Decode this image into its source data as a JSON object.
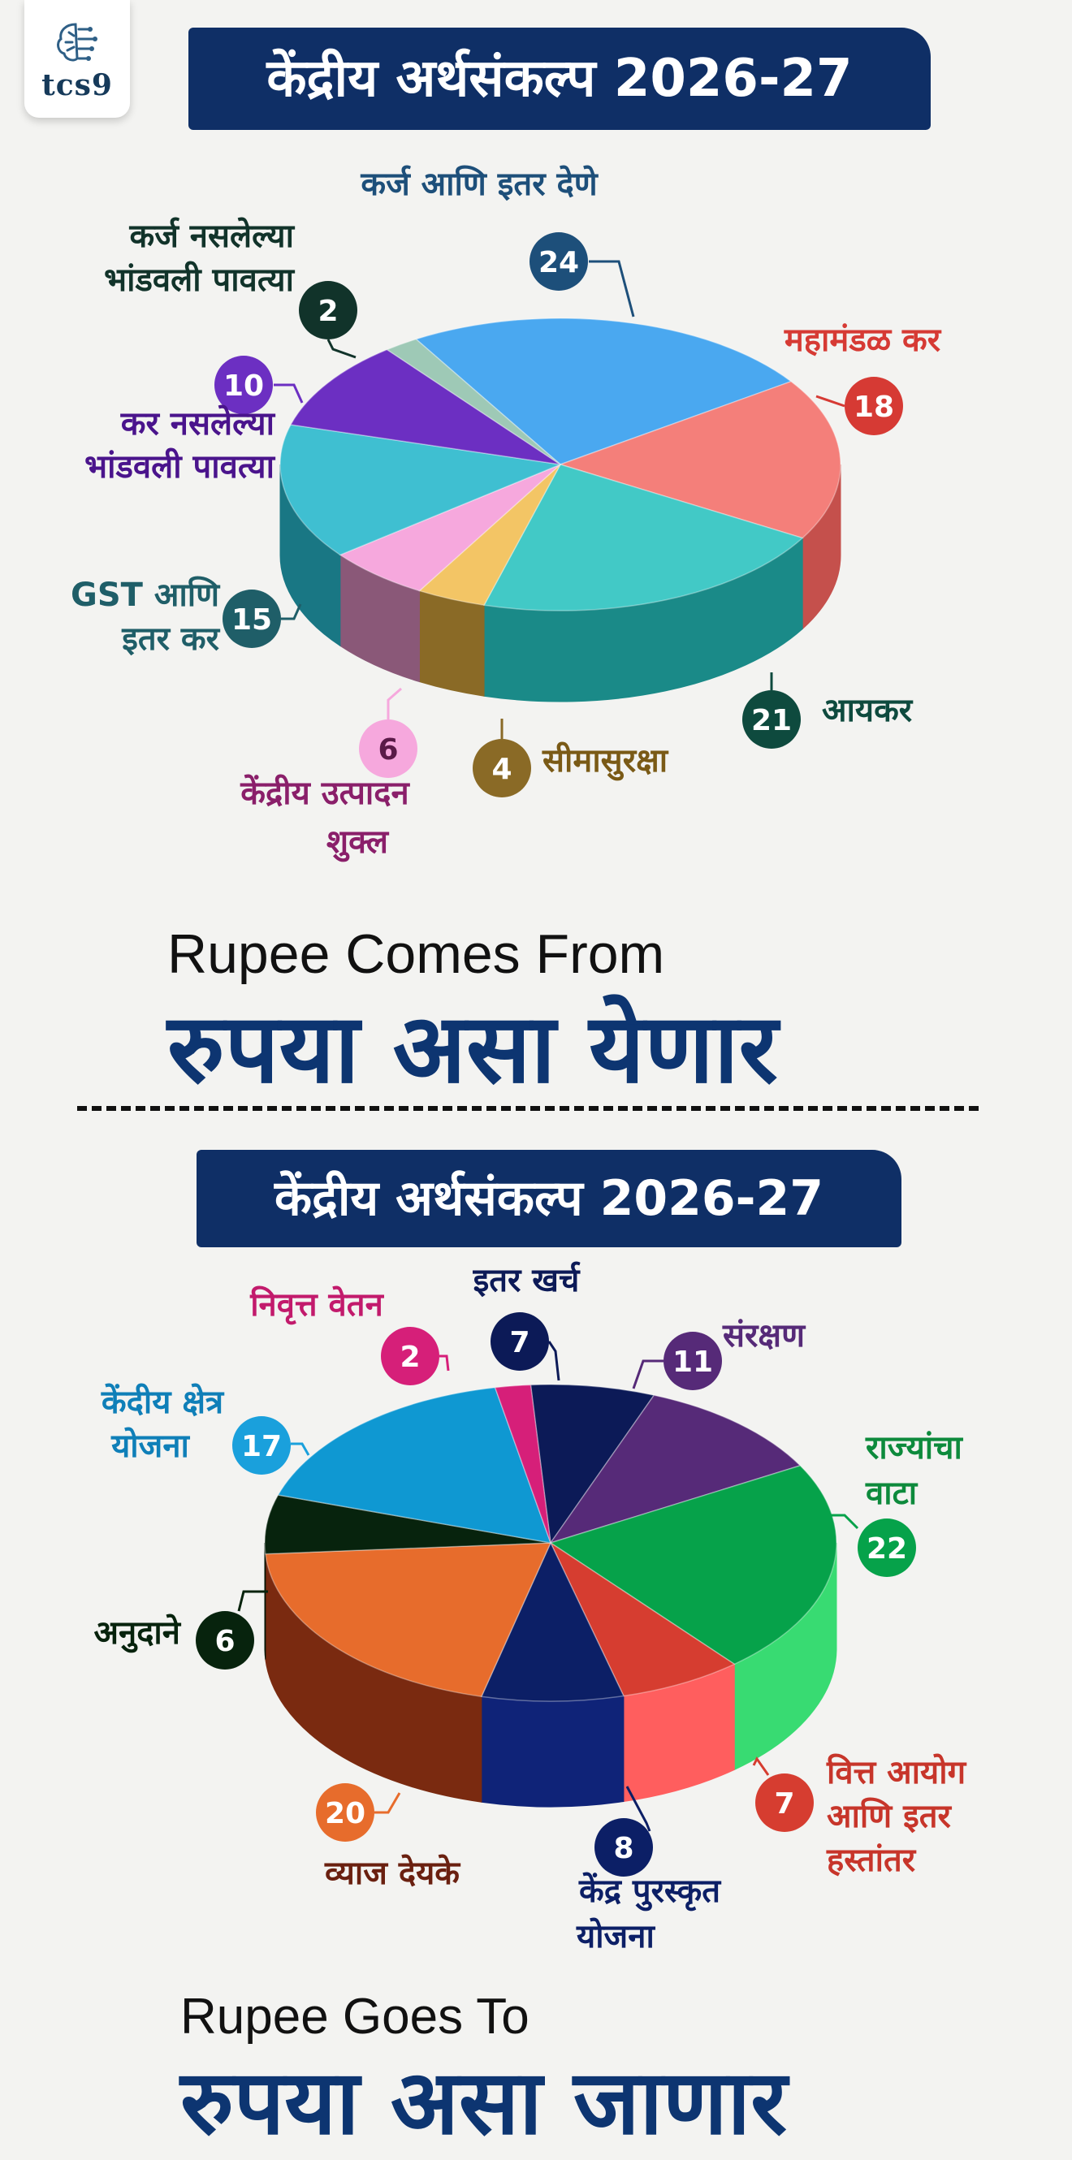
{
  "brand": {
    "logo_text": "tcs9",
    "logo_icon": "brain-circuit-icon"
  },
  "sections": [
    {
      "banner": "केंद्रीय अर्थसंकल्प 2026-27",
      "caption_en": "Rupee Comes From",
      "caption_mr": "रुपया असा येणार"
    },
    {
      "banner": "केंद्रीय अर्थसंकल्प 2026-27",
      "caption_en": "Rupee Goes To",
      "caption_mr": "रुपया असा जाणार"
    }
  ],
  "chart_data": [
    {
      "type": "pie",
      "title": "केंद्रीय अर्थसंकल्प 2026-27",
      "categories": [
        "कर्ज आणि इतर देणे",
        "महामंडळ कर",
        "आयकर",
        "सीमासुरक्षा",
        "केंद्रीय उत्पादन शुक्ल",
        "GST आणि इतर कर",
        "कर नसलेल्या भांडवली पावत्या",
        "कर्ज नसलेल्या भांडवली पावत्या"
      ],
      "values": [
        24,
        18,
        21,
        4,
        6,
        15,
        10,
        2
      ],
      "colors": [
        "#4aa8f0",
        "#f47f7a",
        "#42c9c6",
        "#f3c565",
        "#f6a8dd",
        "#3fbfd1",
        "#6c2fc2",
        "#9ec9b6"
      ],
      "side_colors": [
        "#2a74b0",
        "#c5504c",
        "#1a8a88",
        "#8a6a26",
        "#8a5878",
        "#197784",
        "#3d1775",
        "#5f8a78"
      ],
      "badge_colors": [
        "#1d4f7a",
        "#d63a34",
        "#0e4a3e",
        "#8a6a26",
        "#f6a8dd",
        "#1f5e68",
        "#6c2fc2",
        "#11332a"
      ],
      "label_colors": [
        "#1d4f7a",
        "#d63a34",
        "#0e4a3e",
        "#7a5a16",
        "#8a1f6a",
        "#1f5e68",
        "#4a148c",
        "#11332a"
      ]
    },
    {
      "type": "pie",
      "title": "केंद्रीय अर्थसंकल्प 2026-27",
      "categories": [
        "इतर खर्च",
        "संरक्षण",
        "राज्यांचा वाटा",
        "वित्त आयोग आणि इतर हस्तांतर",
        "केंद्र पुरस्कृत योजना",
        "व्याज देयके",
        "अनुदाने",
        "केंदीय क्षेत्र योजना",
        "निवृत्त वेतन"
      ],
      "values": [
        7,
        11,
        22,
        7,
        8,
        20,
        6,
        17,
        2
      ],
      "colors": [
        "#0c1a57",
        "#562a78",
        "#06a24a",
        "#d63d30",
        "#0c1f66",
        "#e76c2c",
        "#07230d",
        "#0f98d2",
        "#d61f79"
      ],
      "side_colors": [
        "#09123f",
        "#3a1b55",
        "#38db72",
        "#ff5e5e",
        "#0f2378",
        "#7a2a10",
        "#041405",
        "#0a6a95",
        "#8a1350"
      ],
      "badge_colors": [
        "#0c1a57",
        "#562a78",
        "#06a24a",
        "#d63d30",
        "#0c1f66",
        "#e76c2c",
        "#07230d",
        "#1aa0dc",
        "#d61f79"
      ],
      "label_colors": [
        "#0c1a57",
        "#562a78",
        "#0d8a3c",
        "#c7352a",
        "#0c1f66",
        "#6a2010",
        "#07230d",
        "#0f7fb8",
        "#c21a6c"
      ]
    }
  ]
}
